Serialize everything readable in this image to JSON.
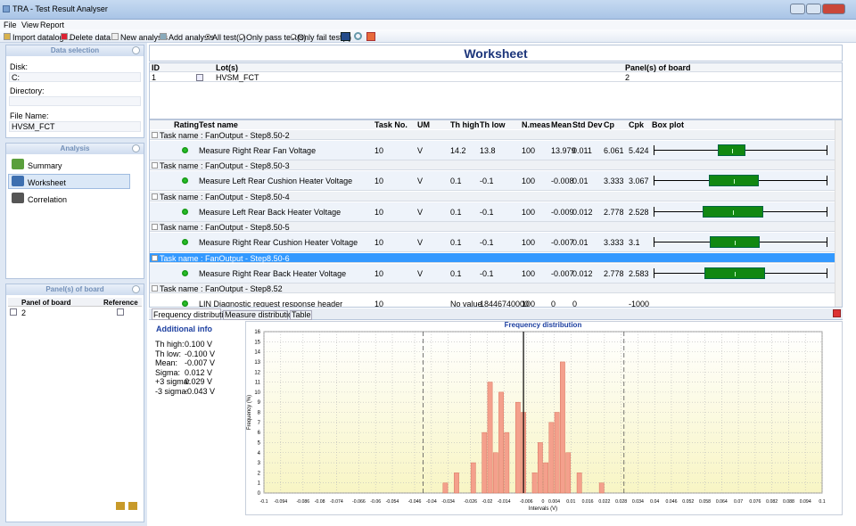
{
  "window": {
    "title": "TRA - Test Result Analyser"
  },
  "menu": [
    "File",
    "View",
    "Report"
  ],
  "toolbar": [
    "Import datalog...",
    "Delete data...",
    "New analysis",
    "Add analysis",
    "All test(s)",
    "Only pass test(s)",
    "Only fail test(s)"
  ],
  "data_selection": {
    "title": "Data selection",
    "disk_label": "Disk:",
    "disk": "C:",
    "directory_label": "Directory:",
    "file_label": "File Name:",
    "file": "HVSM_FCT"
  },
  "analysis": {
    "title": "Analysis",
    "items": [
      "Summary",
      "Worksheet",
      "Correlation"
    ]
  },
  "panels": {
    "title": "Panel(s) of board",
    "headers": [
      "Panel of board",
      "Reference"
    ],
    "rows": [
      "2"
    ]
  },
  "worksheet": {
    "title": "Worksheet",
    "lot_headers": [
      "ID",
      "Lot(s)",
      "Panel(s) of board"
    ],
    "lot_rows": [
      [
        "1",
        "HVSM_FCT",
        "2"
      ]
    ],
    "test_headers": [
      "Rating",
      "Test name",
      "Task No.",
      "UM",
      "Th high",
      "Th low",
      "N.meas",
      "Mean",
      "Std Dev",
      "Cp",
      "Cpk",
      "Box plot"
    ],
    "groups": [
      {
        "name": "Task name : FanOutput - Step8.50-2",
        "row": [
          "Measure Right Rear Fan Voltage",
          "10",
          "V",
          "14.2",
          "13.8",
          "100",
          "13.979",
          "0.011",
          "6.061",
          "5.424"
        ]
      },
      {
        "name": "Task name : FanOutput - Step8.50-3",
        "row": [
          "Measure Left Rear Cushion Heater Voltage",
          "10",
          "V",
          "0.1",
          "-0.1",
          "100",
          "-0.008",
          "0.01",
          "3.333",
          "3.067"
        ]
      },
      {
        "name": "Task name : FanOutput - Step8.50-4",
        "row": [
          "Measure Left Rear Back Heater Voltage",
          "10",
          "V",
          "0.1",
          "-0.1",
          "100",
          "-0.009",
          "0.012",
          "2.778",
          "2.528"
        ]
      },
      {
        "name": "Task name : FanOutput - Step8.50-5",
        "row": [
          "Measure Right Rear Cushion Heater Voltage",
          "10",
          "V",
          "0.1",
          "-0.1",
          "100",
          "-0.007",
          "0.01",
          "3.333",
          "3.1"
        ]
      },
      {
        "name": "Task name : FanOutput - Step8.50-6",
        "row": [
          "Measure Right Rear Back Heater Voltage",
          "10",
          "V",
          "0.1",
          "-0.1",
          "100",
          "-0.007",
          "0.012",
          "2.778",
          "2.583"
        ]
      },
      {
        "name": "Task name : FanOutput - Step8.52",
        "row": [
          "LIN Diagnostic request response header",
          "10",
          null,
          "No value",
          "18446740000",
          "100",
          "0",
          "0",
          null,
          "-1000"
        ]
      }
    ]
  },
  "tabs": [
    "Frequency distribution",
    "Measure distribution",
    "Table"
  ],
  "additional_info": {
    "title": "Additional info",
    "lines": [
      [
        "Th high:",
        "0.100 V"
      ],
      [
        "Th low:",
        "-0.100 V"
      ],
      [
        "Mean:",
        "-0.007 V"
      ],
      [
        "Sigma:",
        "0.012 V"
      ],
      [
        "+3 sigma:",
        "0.029 V"
      ],
      [
        "-3 sigma:",
        "-0.043 V"
      ]
    ]
  },
  "chart_data": {
    "type": "histogram",
    "title": "Frequency distribution",
    "x_label": "Intervals (V)",
    "y_label": "Frequency (%)",
    "bins": [
      -0.036,
      -0.034,
      -0.032,
      -0.03,
      -0.028,
      -0.026,
      -0.024,
      -0.022,
      -0.02,
      -0.018,
      -0.016,
      -0.014,
      -0.012,
      -0.01,
      -0.008,
      -0.006,
      -0.004,
      -0.002,
      0,
      0.002,
      0.004,
      0.006,
      0.008,
      0.01,
      0.012,
      0.014,
      0.016,
      0.018,
      0.02,
      0.022,
      0.024
    ],
    "values": [
      1,
      0,
      2,
      0,
      0,
      3,
      0,
      6,
      11,
      4,
      10,
      6,
      0,
      9,
      8,
      0,
      2,
      5,
      3,
      7,
      8,
      13,
      4,
      0,
      2,
      0,
      0,
      0,
      1,
      0
    ],
    "color": "#f4a08c",
    "lines": [
      {
        "value": -0.043,
        "style": "dashed"
      },
      {
        "value": -0.007,
        "style": "solid"
      },
      {
        "value": 0.029,
        "style": "dashed"
      }
    ],
    "xlim": [
      -0.1,
      0.1
    ],
    "ylim": [
      0,
      16
    ],
    "xticks": [
      -0.1,
      -0.094,
      -0.086,
      -0.08,
      -0.074,
      -0.066,
      -0.06,
      -0.054,
      -0.046,
      -0.04,
      -0.034,
      -0.026,
      -0.02,
      -0.014,
      -0.006,
      0,
      0.004,
      0.01,
      0.016,
      0.022,
      0.028,
      0.034,
      0.04,
      0.046,
      0.052,
      0.058,
      0.064,
      0.07,
      0.076,
      0.082,
      0.088,
      0.094,
      0.1
    ],
    "yticks": [
      0,
      1,
      2,
      3,
      4,
      5,
      6,
      7,
      8,
      9,
      10,
      11,
      12,
      13,
      14,
      15,
      16
    ],
    "grid": true
  }
}
